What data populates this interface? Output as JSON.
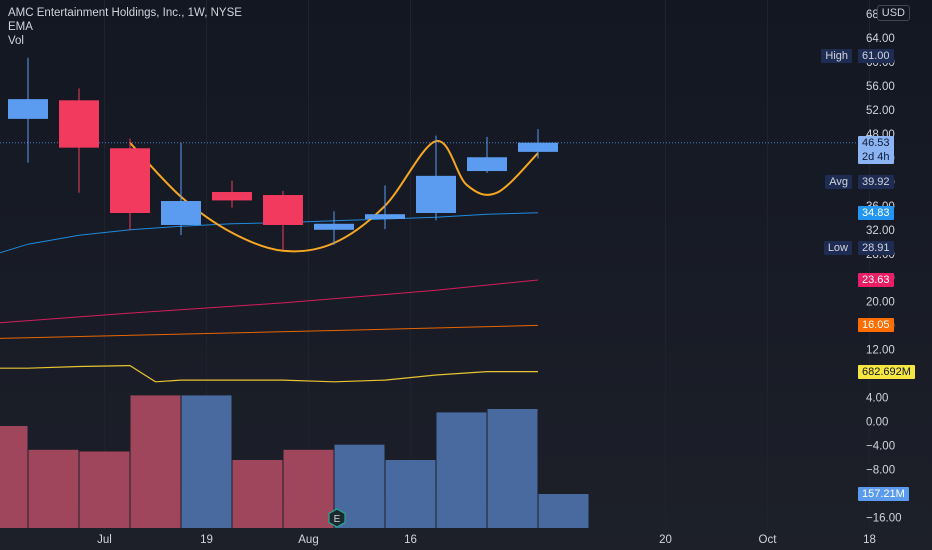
{
  "header": {
    "title": "AMC Entertainment Holdings, Inc., 1W, NYSE",
    "indicators": [
      "EMA",
      "Vol"
    ],
    "currency": "USD"
  },
  "chart_data": {
    "type": "candlestick",
    "price_axis": {
      "ticks": [
        "68.00",
        "64.00",
        "60.00",
        "56.00",
        "52.00",
        "48.00",
        "44.00",
        "40.00",
        "36.00",
        "32.00",
        "28.00",
        "24.00",
        "20.00",
        "16.00",
        "12.00",
        "8.00",
        "4.00",
        "0.00",
        "−4.00",
        "−8.00",
        "−12.00",
        "−16.00"
      ]
    },
    "x_ticks": [
      {
        "label": "Jul",
        "week": 1.5
      },
      {
        "label": "19",
        "week": 3.5
      },
      {
        "label": "Aug",
        "week": 5.5
      },
      {
        "label": "16",
        "week": 7.5
      },
      {
        "label": "20",
        "week": 12.5
      },
      {
        "label": "Oct",
        "week": 14.5
      },
      {
        "label": "18",
        "week": 16.5
      }
    ],
    "candles": [
      {
        "week": 0,
        "open": 50.5,
        "high": 60.7,
        "low": 43.2,
        "close": 53.8
      },
      {
        "week": 1,
        "open": 53.6,
        "high": 55.6,
        "low": 38.2,
        "close": 45.7
      },
      {
        "week": 2,
        "open": 45.6,
        "high": 47.2,
        "low": 31.9,
        "close": 34.8
      },
      {
        "week": 3,
        "open": 32.8,
        "high": 46.5,
        "low": 31.1,
        "close": 36.8
      },
      {
        "week": 4,
        "open": 38.3,
        "high": 40.2,
        "low": 35.7,
        "close": 36.9
      },
      {
        "week": 5,
        "open": 37.8,
        "high": 38.5,
        "low": 28.7,
        "close": 32.8
      },
      {
        "week": 6,
        "open": 32.0,
        "high": 35.1,
        "low": 29.5,
        "close": 33.0
      },
      {
        "week": 7,
        "open": 33.8,
        "high": 39.4,
        "low": 32.1,
        "close": 34.6
      },
      {
        "week": 8,
        "open": 34.8,
        "high": 47.7,
        "low": 33.6,
        "close": 41.0
      },
      {
        "week": 9,
        "open": 41.8,
        "high": 47.5,
        "low": 41.5,
        "close": 44.1
      },
      {
        "week": 10,
        "open": 45.0,
        "high": 48.8,
        "low": 43.9,
        "close": 46.53
      }
    ],
    "volume_bars": [
      {
        "week": -0.5,
        "direction": "down",
        "level": 0.6
      },
      {
        "week": 0.5,
        "direction": "down",
        "level": 0.46
      },
      {
        "week": 1.5,
        "direction": "down",
        "level": 0.45
      },
      {
        "week": 2.5,
        "direction": "down",
        "level": 0.78
      },
      {
        "week": 3.5,
        "direction": "up",
        "level": 0.78
      },
      {
        "week": 4.5,
        "direction": "down",
        "level": 0.4
      },
      {
        "week": 5.5,
        "direction": "down",
        "level": 0.46
      },
      {
        "week": 6.5,
        "direction": "up",
        "level": 0.49
      },
      {
        "week": 7.5,
        "direction": "up",
        "level": 0.4
      },
      {
        "week": 8.5,
        "direction": "up",
        "level": 0.68
      },
      {
        "week": 9.5,
        "direction": "up",
        "level": 0.7
      },
      {
        "week": 10.5,
        "direction": "up",
        "level": 0.2
      }
    ],
    "ema_lines": [
      {
        "color": "#2196f3",
        "points": [
          [
            -1,
            27.0
          ],
          [
            0,
            29.6
          ],
          [
            1,
            31.1
          ],
          [
            2,
            32.0
          ],
          [
            3,
            32.6
          ],
          [
            4,
            33.0
          ],
          [
            5,
            33.2
          ],
          [
            6,
            33.5
          ],
          [
            7,
            33.8
          ],
          [
            8,
            34.1
          ],
          [
            9,
            34.6
          ],
          [
            10,
            34.83
          ]
        ]
      },
      {
        "color": "#e91e63",
        "points": [
          [
            -1,
            16.2
          ],
          [
            2,
            18.1
          ],
          [
            5,
            19.8
          ],
          [
            8,
            21.9
          ],
          [
            10,
            23.63
          ]
        ]
      },
      {
        "color": "#ff6d00",
        "points": [
          [
            -1,
            13.8
          ],
          [
            3,
            14.6
          ],
          [
            7,
            15.4
          ],
          [
            10,
            16.05
          ]
        ]
      }
    ],
    "volume_ma": {
      "color": "#e6c433",
      "points": [
        [
          -1,
          0.94
        ],
        [
          0,
          0.94
        ],
        [
          1,
          0.95
        ],
        [
          2,
          0.955
        ],
        [
          2.5,
          0.86
        ],
        [
          3,
          0.87
        ],
        [
          4,
          0.87
        ],
        [
          5,
          0.87
        ],
        [
          6,
          0.86
        ],
        [
          7,
          0.87
        ],
        [
          8,
          0.9
        ],
        [
          9,
          0.92
        ],
        [
          10,
          0.92
        ]
      ]
    },
    "cup_handle": {
      "color": "#f5a623",
      "points": [
        [
          2,
          46.5
        ],
        [
          3,
          37.5
        ],
        [
          4,
          31.5
        ],
        [
          5,
          28.5
        ],
        [
          6,
          29.8
        ],
        [
          7,
          36.0
        ],
        [
          8,
          46.8
        ],
        [
          8.6,
          39.5
        ],
        [
          9.2,
          38.2
        ],
        [
          10,
          44.8
        ]
      ]
    },
    "current_price": 46.53,
    "axis_labels": [
      {
        "key": "high",
        "name": "High",
        "value": "61.00",
        "price": 61.0,
        "bg": "#1e2c54",
        "fg": "#d1d4dc"
      },
      {
        "key": "last",
        "name": "",
        "value": "46.53",
        "value2": "2d 4h",
        "price": 46.53,
        "bg": "#8cb4f2",
        "fg": "#0d1a33"
      },
      {
        "key": "avg",
        "name": "Avg",
        "value": "39.92",
        "price": 39.92,
        "bg": "#1e2c54",
        "fg": "#d1d4dc"
      },
      {
        "key": "ema1",
        "name": "",
        "value": "34.83",
        "price": 34.83,
        "bg": "#2196f3",
        "fg": "#ffffff"
      },
      {
        "key": "low",
        "name": "Low",
        "value": "28.91",
        "price": 28.91,
        "bg": "#1e2c54",
        "fg": "#d1d4dc"
      },
      {
        "key": "ema2",
        "name": "",
        "value": "23.63",
        "price": 23.63,
        "bg": "#e91e63",
        "fg": "#ffffff"
      },
      {
        "key": "ema3",
        "name": "",
        "value": "16.05",
        "price": 16.05,
        "bg": "#ff6d00",
        "fg": "#ffffff"
      },
      {
        "key": "volma",
        "name": "",
        "value": "682.692M",
        "price": 0.92,
        "pane": "volume",
        "bg": "#f5e642",
        "fg": "#131722"
      },
      {
        "key": "vol",
        "name": "",
        "value": "157.21M",
        "price": 0.2,
        "pane": "volume",
        "bg": "#5b9cf0",
        "fg": "#ffffff"
      }
    ]
  },
  "colors": {
    "up": "#5b9cf0",
    "down": "#f23a5e",
    "volume_up": "#4c6fa5",
    "volume_down": "#a7495f",
    "background": "#131722",
    "grid": "#1f2330",
    "text": "#d1d4dc"
  },
  "icons": {
    "events": "earnings-icon"
  },
  "footer": {
    "event_letter": "E"
  }
}
